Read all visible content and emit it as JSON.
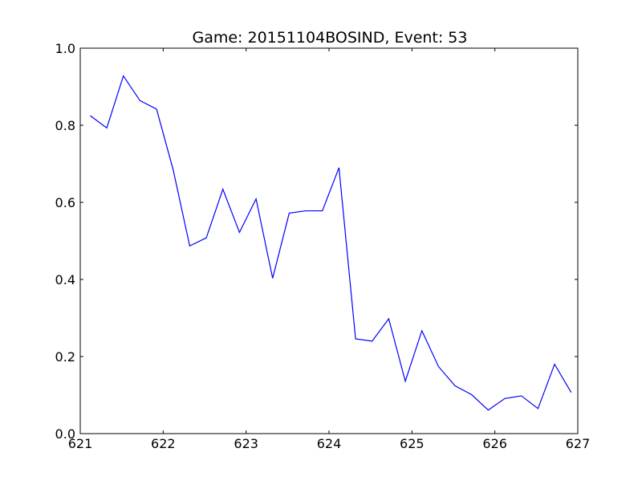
{
  "chart_data": {
    "type": "line",
    "title": "Game: 20151104BOSIND, Event: 53",
    "xlabel": "",
    "ylabel": "",
    "xlim": [
      621,
      627
    ],
    "ylim": [
      0.0,
      1.0
    ],
    "x_ticks": [
      621,
      622,
      623,
      624,
      625,
      626,
      627
    ],
    "x_tick_labels": [
      "621",
      "622",
      "623",
      "624",
      "625",
      "626",
      "627"
    ],
    "y_ticks": [
      0.0,
      0.2,
      0.4,
      0.6,
      0.8,
      1.0
    ],
    "y_tick_labels": [
      "0.0",
      "0.2",
      "0.4",
      "0.6",
      "0.8",
      "1.0"
    ],
    "grid": false,
    "series": [
      {
        "color": "#0000ff",
        "x": [
          621.12,
          621.32,
          621.52,
          621.72,
          621.92,
          622.12,
          622.32,
          622.52,
          622.72,
          622.92,
          623.12,
          623.32,
          623.52,
          623.72,
          623.92,
          624.12,
          624.32,
          624.52,
          624.72,
          624.92,
          625.12,
          625.32,
          625.52,
          625.72,
          625.92,
          626.12,
          626.32,
          626.52,
          626.72,
          626.92
        ],
        "y": [
          0.825,
          0.793,
          0.928,
          0.864,
          0.842,
          0.685,
          0.487,
          0.508,
          0.634,
          0.522,
          0.609,
          0.403,
          0.572,
          0.578,
          0.578,
          0.69,
          0.246,
          0.24,
          0.298,
          0.136,
          0.267,
          0.174,
          0.124,
          0.101,
          0.061,
          0.091,
          0.098,
          0.065,
          0.18,
          0.107
        ]
      }
    ]
  }
}
